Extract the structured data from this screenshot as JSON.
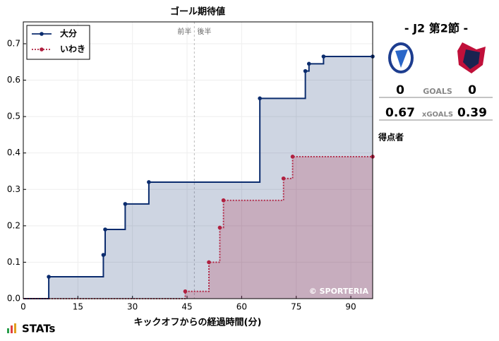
{
  "chart_data": {
    "type": "step",
    "title": "ゴール期待値",
    "x_label": "キックオフからの経過時間(分)",
    "xlim": [
      0,
      96
    ],
    "xticks": [
      0,
      15,
      30,
      45,
      60,
      75,
      90
    ],
    "ylim": [
      0,
      0.76
    ],
    "yticks": [
      {
        "value": 0,
        "label": "0.0"
      },
      {
        "value": 0.1,
        "label": "0.1"
      },
      {
        "value": 0.2,
        "label": "0.2"
      },
      {
        "value": 0.3,
        "label": "0.3"
      },
      {
        "value": 0.4,
        "label": "0.4"
      },
      {
        "value": 0.5,
        "label": "0.5"
      },
      {
        "value": 0.6,
        "label": "0.6"
      },
      {
        "value": 0.7,
        "label": "0.7"
      }
    ],
    "grid": true,
    "legend": "upper left",
    "half_time": {
      "x": 47,
      "labels": [
        "前半",
        "後半"
      ]
    },
    "annotation": "© SPORTERIA",
    "series": [
      {
        "name": "大分",
        "color": "#0b2c6e",
        "line_style": "solid",
        "x": [
          0,
          7,
          22,
          22.5,
          28,
          34.5,
          65,
          77.5,
          78.5,
          82.5,
          96
        ],
        "values": [
          0,
          0.06,
          0.12,
          0.19,
          0.26,
          0.32,
          0.55,
          0.625,
          0.645,
          0.665,
          0.665
        ]
      },
      {
        "name": "いわき",
        "color": "#b0203f",
        "line_style": "dotted",
        "x": [
          0,
          44.5,
          51,
          54,
          55,
          71.5,
          74,
          96
        ],
        "values": [
          0,
          0.02,
          0.1,
          0.195,
          0.27,
          0.33,
          0.39,
          0.39
        ]
      }
    ]
  },
  "match": {
    "round": "- J2 第2節 -",
    "home_goals": "0",
    "goals_label": "GOALS",
    "away_goals": "0",
    "home_xg": "0.67",
    "xg_label": "xGOALS",
    "away_xg": "0.39",
    "scorers_label": "得点者",
    "brand": "STATs"
  }
}
